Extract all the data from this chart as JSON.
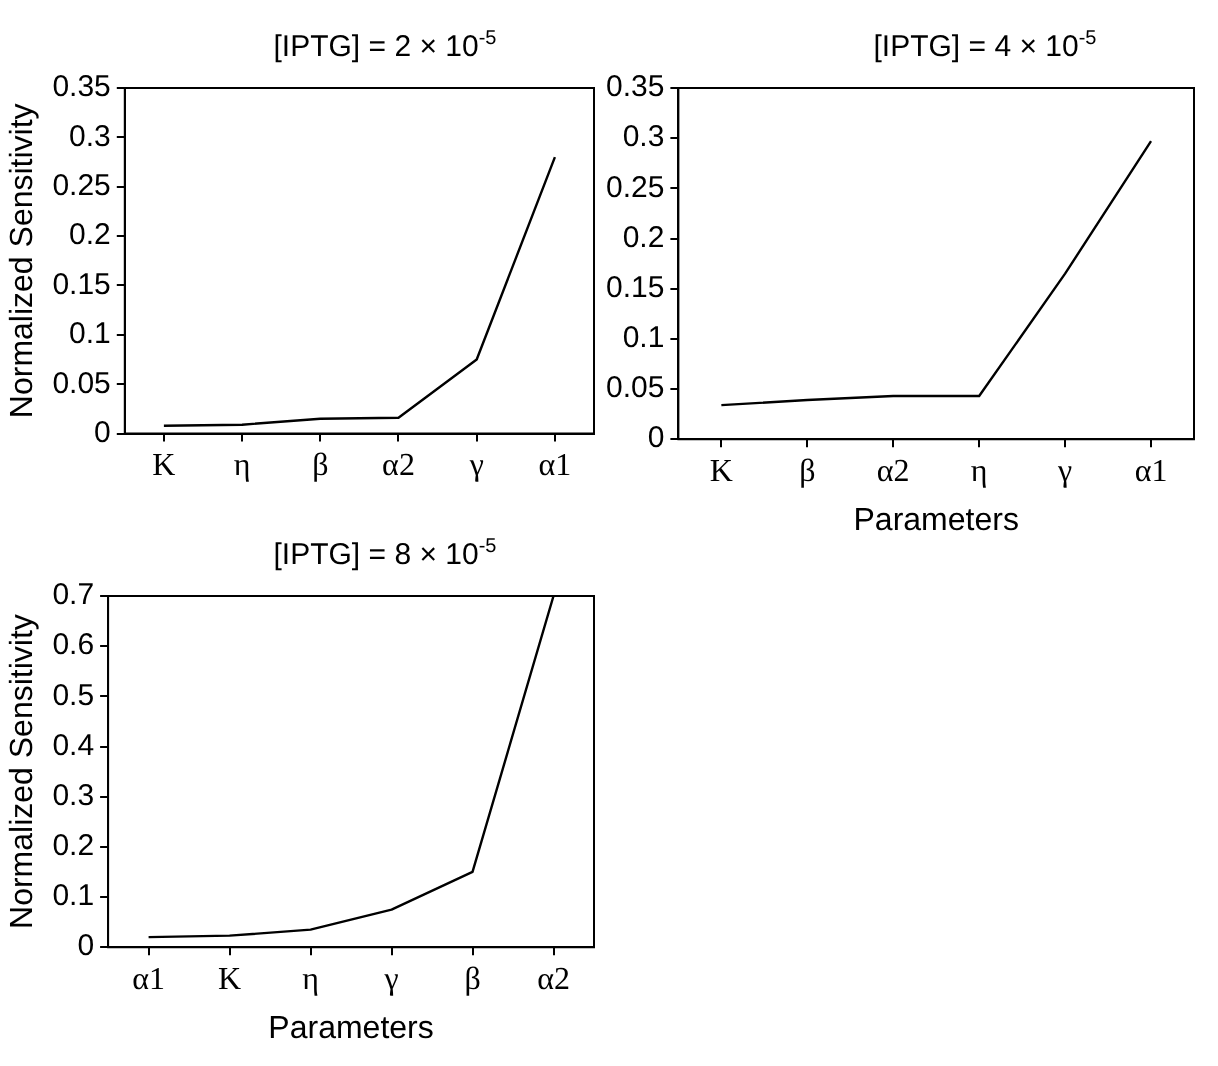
{
  "chart_data": [
    {
      "type": "line",
      "title": "[IPTG] = 2 × 10$^{-5}$",
      "ylabel": "Normalized Sensitivity",
      "categories": [
        "K",
        "η",
        "β",
        "α2",
        "γ",
        "α1"
      ],
      "series": [
        {
          "color": "#000000",
          "values": [
            0.008,
            0.009,
            0.015,
            0.016,
            0.075,
            0.28
          ]
        }
      ],
      "ylim": [
        0,
        0.35
      ],
      "yticks": [
        0,
        0.05,
        0.1,
        0.15,
        0.2,
        0.25,
        0.3,
        0.35
      ],
      "grid": false,
      "legend": false,
      "marker": "none",
      "line_style": "solid"
    },
    {
      "type": "line",
      "title": "[IPTG] = 4 × 10$^{-5}$",
      "xlabel": "Parameters",
      "categories": [
        "K",
        "β",
        "α2",
        "η",
        "γ",
        "α1"
      ],
      "series": [
        {
          "color": "#000000",
          "values": [
            0.034,
            0.039,
            0.043,
            0.043,
            0.165,
            0.297
          ]
        }
      ],
      "ylim": [
        0,
        0.35
      ],
      "yticks": [
        0,
        0.05,
        0.1,
        0.15,
        0.2,
        0.25,
        0.3,
        0.35
      ],
      "grid": false,
      "legend": false,
      "marker": "none",
      "line_style": "solid"
    },
    {
      "type": "line",
      "title": "[IPTG] = 8 × 10$^{-5}$",
      "xlabel": "Parameters",
      "ylabel": "Normalized Sensitivity",
      "categories": [
        "α1",
        "K",
        "η",
        "γ",
        "β",
        "α2"
      ],
      "series": [
        {
          "color": "#000000",
          "values": [
            0.02,
            0.023,
            0.035,
            0.075,
            0.15,
            0.7
          ]
        }
      ],
      "ylim": [
        0,
        0.7
      ],
      "yticks": [
        0,
        0.1,
        0.2,
        0.3,
        0.4,
        0.5,
        0.6,
        0.7
      ],
      "grid": false,
      "legend": false,
      "marker": "none",
      "line_style": "solid"
    }
  ]
}
